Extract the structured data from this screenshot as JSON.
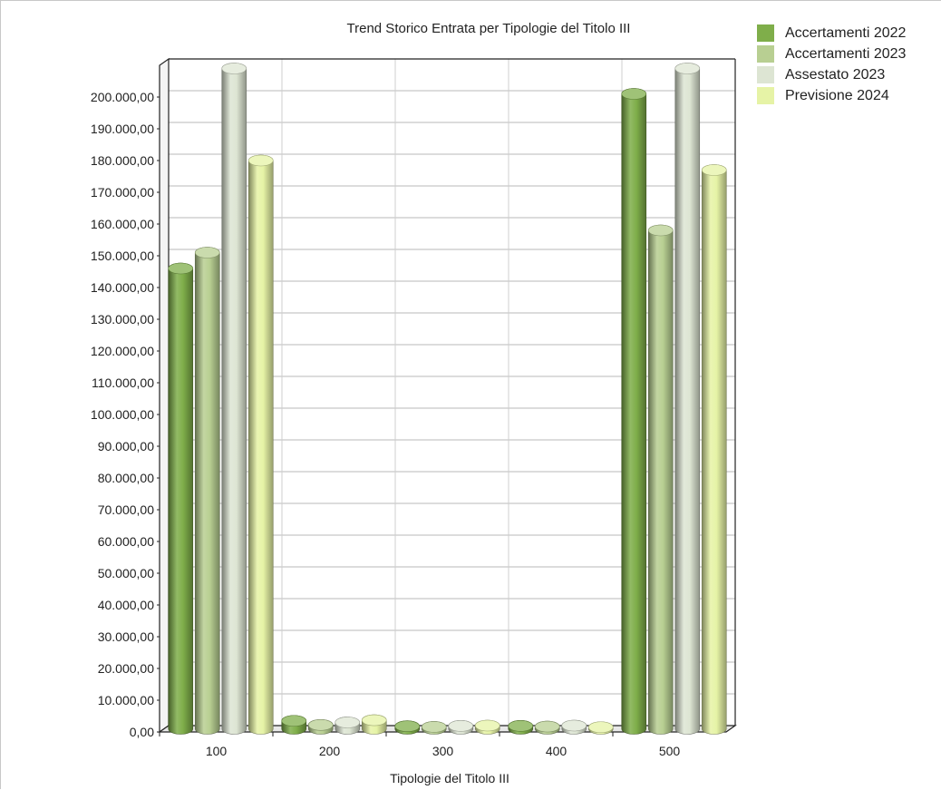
{
  "chart_data": {
    "type": "bar",
    "title": "Trend Storico Entrata per Tipologie del Titolo III",
    "xlabel": "Tipologie del Titolo III",
    "ylabel": "",
    "categories": [
      "100",
      "200",
      "300",
      "400",
      "500"
    ],
    "ylim": [
      0,
      210000
    ],
    "ytick_labels": [
      "0,00",
      "10.000,00",
      "20.000,00",
      "30.000,00",
      "40.000,00",
      "50.000,00",
      "60.000,00",
      "70.000,00",
      "80.000,00",
      "90.000,00",
      "100.000,00",
      "110.000,00",
      "120.000,00",
      "130.000,00",
      "140.000,00",
      "150.000,00",
      "160.000,00",
      "170.000,00",
      "180.000,00",
      "190.000,00",
      "200.000,00"
    ],
    "legend_position": "top-right",
    "grid": true,
    "series": [
      {
        "name": "Accertamenti 2022",
        "color": "#7fae4a",
        "values": [
          145000,
          2500,
          800,
          900,
          200000
        ]
      },
      {
        "name": "Accertamenti 2023",
        "color": "#b8cf92",
        "values": [
          150000,
          1200,
          600,
          700,
          157000
        ]
      },
      {
        "name": "Assestato 2023",
        "color": "#dde5d3",
        "values": [
          208000,
          2000,
          900,
          1000,
          208000
        ]
      },
      {
        "name": "Previsione 2024",
        "color": "#e6f3a6",
        "values": [
          179000,
          2700,
          1000,
          500,
          176000
        ]
      }
    ]
  }
}
